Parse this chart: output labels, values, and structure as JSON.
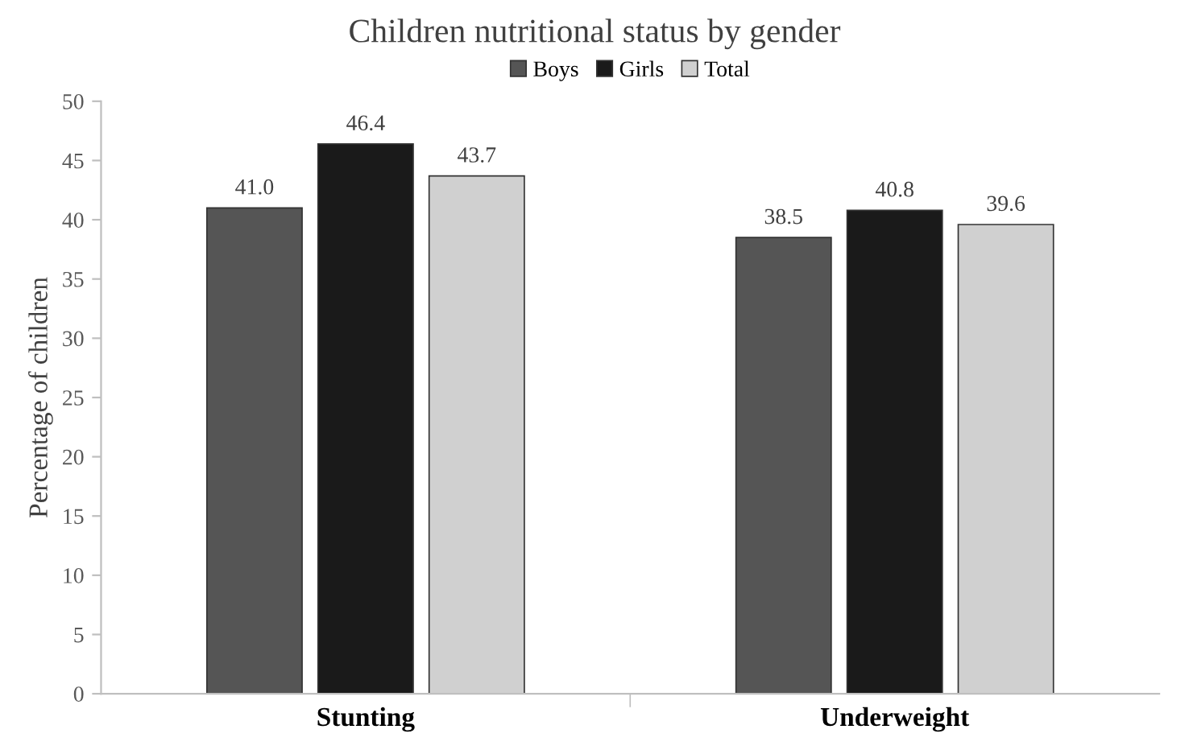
{
  "chart_data": {
    "type": "bar",
    "title": "Children nutritional status by gender",
    "ylabel": "Percentage of children",
    "categories": [
      "Stunting",
      "Underweight"
    ],
    "series": [
      {
        "name": "Boys",
        "color": "#555555",
        "values": [
          41.0,
          38.5
        ],
        "value_labels": [
          "41.0",
          "38.5"
        ]
      },
      {
        "name": "Girls",
        "color": "#1a1a1a",
        "values": [
          46.4,
          40.8
        ],
        "value_labels": [
          "46.4",
          "40.8"
        ]
      },
      {
        "name": "Total",
        "color": "#d0d0d0",
        "values": [
          43.7,
          39.6
        ],
        "value_labels": [
          "43.7",
          "39.6"
        ]
      }
    ],
    "ylim": [
      0,
      50
    ],
    "yticks": [
      0,
      5,
      10,
      15,
      20,
      25,
      30,
      35,
      40,
      45,
      50
    ],
    "grid": false,
    "legend": "top"
  }
}
